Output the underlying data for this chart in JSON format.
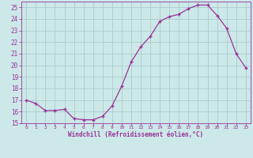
{
  "x": [
    0,
    1,
    2,
    3,
    4,
    5,
    6,
    7,
    8,
    9,
    10,
    11,
    12,
    13,
    14,
    15,
    16,
    17,
    18,
    19,
    20,
    21,
    22,
    23
  ],
  "y": [
    17.0,
    16.7,
    16.1,
    16.1,
    16.2,
    15.4,
    15.3,
    15.3,
    15.6,
    16.5,
    18.2,
    20.3,
    21.6,
    22.5,
    23.8,
    24.2,
    24.4,
    24.9,
    25.2,
    25.2,
    24.3,
    23.2,
    21.0,
    19.8
  ],
  "line_color": "#993399",
  "marker": "+",
  "bg_color": "#cce8e8",
  "grid_color": "#aacccc",
  "tick_color": "#993399",
  "label_color": "#993399",
  "xlabel": "Windchill (Refroidissement éolien,°C)",
  "xlim": [
    -0.5,
    23.5
  ],
  "ylim": [
    15,
    25.5
  ],
  "yticks": [
    15,
    16,
    17,
    18,
    19,
    20,
    21,
    22,
    23,
    24,
    25
  ],
  "xticks": [
    0,
    1,
    2,
    3,
    4,
    5,
    6,
    7,
    8,
    9,
    10,
    11,
    12,
    13,
    14,
    15,
    16,
    17,
    18,
    19,
    20,
    21,
    22,
    23
  ]
}
